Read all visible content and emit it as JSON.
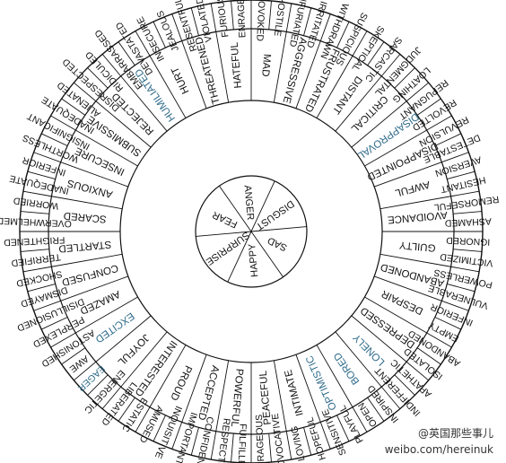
{
  "colors": {
    "ink": "#111111",
    "accent": "#2e6b8a",
    "background": "#ffffff"
  },
  "core": [
    "ANGER",
    "DISGUST",
    "SAD",
    "HAPPY",
    "SURPRISE",
    "FEAR"
  ],
  "middle": [
    "MAD",
    "AGGRESSIVE",
    "FRUSTRATED",
    "DISTANT",
    "CRITICAL",
    "DISAPPROVAL",
    "DISAPPOINTED",
    "AWFUL",
    "AVOIDANCE",
    "GUILTY",
    "ABANDONED",
    "DESPAIR",
    "DEPRESSED",
    "LONELY",
    "BORED",
    "OPTIMISTIC",
    "INTIMATE",
    "PEACEFUL",
    "POWERFUL",
    "ACCEPTED",
    "PROUD",
    "INTERESTED",
    "JOYFUL",
    "EXCITED",
    "AMAZED",
    "CONFUSED",
    "STARTLED",
    "SCARED",
    "ANXIOUS",
    "INSECURE",
    "SUBMISSIVE",
    "REJECTED",
    "HUMILIATED",
    "HURT",
    "THREATENED",
    "HATEFUL"
  ],
  "outer": [
    "PROVOKED",
    "HOSTILE",
    "INFURIATED",
    "IRRITATED",
    "WITHDRAWN",
    "SUSPICIOUS",
    "SKEPTICAL",
    "SARCASTIC",
    "JUDGMENTAL",
    "LOATHING",
    "REPUGNANT",
    "REVOLTED",
    "REVULSION",
    "DETESTABLE",
    "AVERSION",
    "HESITANT",
    "REMORSEFUL",
    "ASHAMED",
    "IGNORED",
    "VICTIMIZED",
    "POWERLESS",
    "VULNERABLE",
    "INFERIOR",
    "EMPTY",
    "ABANDONED",
    "ISOLATED",
    "APATHETIC",
    "INDIFFERENT",
    "INSPIRED",
    "OPEN",
    "PLAYFUL",
    "SENSITIVE",
    "HOPEFUL",
    "LOVING",
    "PROVOCATIVE",
    "COURAGEOUS",
    "FULFILLED",
    "RESPECTED",
    "CONFIDENT",
    "IMPORTANT",
    "INQUISITIVE",
    "AMUSED",
    "ESTATIC",
    "LIBERATED",
    "ENERGETIC",
    "EAGER",
    "AWE",
    "ASTONISHED",
    "PERPLEXED",
    "DISILLUSIONED",
    "DISMAYED",
    "SHOCKED",
    "TERRIFIED",
    "FRIGHTENED",
    "OVERWHELMED",
    "WORRIED",
    "INADEQUATE",
    "INFERIOR",
    "WORTHLESS",
    "INSIGNIFICANT",
    "INADEQUATE",
    "ALIENATED",
    "DISRESPECTED",
    "RIDICULED",
    "EMBARRASSED",
    "DEVASTATED",
    "INSECURE",
    "JEALOUS",
    "RESENTFUL",
    "VIOLATED",
    "FURIOUS",
    "ENRAGED"
  ],
  "accent_words": [
    "DISAPPROVAL",
    "LONELY",
    "BORED",
    "EXCITED",
    "HUMILIATED",
    "EAGER",
    "OPTIMISTIC"
  ],
  "watermark": {
    "line1": "@英国那些事儿",
    "line2": "weibo.com/hereinuk"
  }
}
